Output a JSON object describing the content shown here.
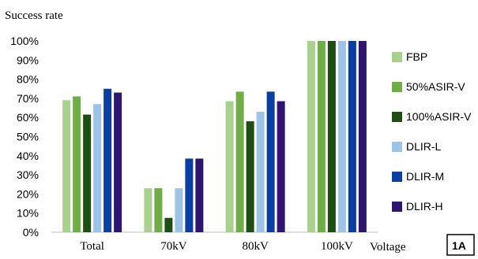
{
  "chart_data": {
    "type": "bar",
    "ylabel": "Success rate",
    "xlabel": "Voltage",
    "panel_label": "1A",
    "categories": [
      "Total",
      "70kV",
      "80kV",
      "100kV"
    ],
    "ylim": [
      0,
      100
    ],
    "y_ticks": [
      "0%",
      "10%",
      "20%",
      "30%",
      "40%",
      "50%",
      "60%",
      "70%",
      "80%",
      "90%",
      "100%"
    ],
    "grid": false,
    "legend_position": "right",
    "series": [
      {
        "name": "FBP",
        "color": "#a9d18e",
        "values": [
          69,
          23,
          68.5,
          100
        ]
      },
      {
        "name": "50%ASIR-V",
        "color": "#70ad47",
        "values": [
          71,
          23,
          73.5,
          100
        ]
      },
      {
        "name": "100%ASIR-V",
        "color": "#1f4e14",
        "values": [
          61.5,
          7.5,
          58,
          100
        ]
      },
      {
        "name": "DLIR-L",
        "color": "#9dc3e6",
        "values": [
          67,
          23,
          63,
          100
        ]
      },
      {
        "name": "DLIR-M",
        "color": "#0b3ea1",
        "values": [
          75,
          38.5,
          73.5,
          100
        ]
      },
      {
        "name": "DLIR-H",
        "color": "#2e1670",
        "values": [
          73,
          38.5,
          68.5,
          100
        ]
      }
    ]
  }
}
